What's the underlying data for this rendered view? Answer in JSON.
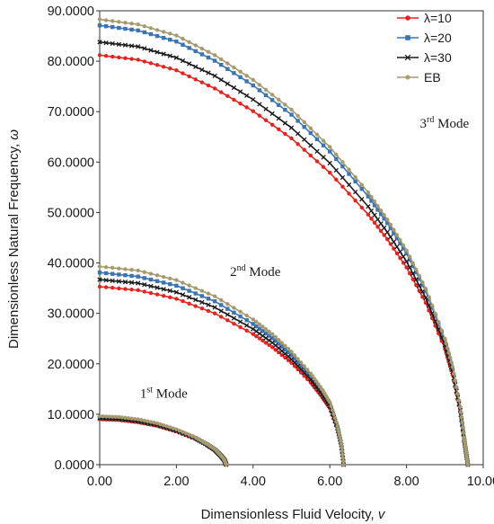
{
  "chart_data": {
    "type": "line",
    "xlabel": "Dimensionless Fluid Velocity, ",
    "xlabel_var": "v",
    "ylabel": "Dimensionless Natural Frequency, ",
    "ylabel_var": "ω",
    "xlim": [
      0,
      10
    ],
    "ylim": [
      0,
      90
    ],
    "xticks": [
      "0.00",
      "2.00",
      "4.00",
      "6.00",
      "8.00",
      "10.00"
    ],
    "yticks": [
      "0.0000",
      "10.0000",
      "20.0000",
      "30.0000",
      "40.0000",
      "50.0000",
      "60.0000",
      "70.0000",
      "80.0000",
      "90.0000"
    ],
    "grid": false,
    "legend_position": "top-right",
    "colors": {
      "lambda10": "#e8231f",
      "lambda20": "#3b74b3",
      "lambda30": "#1c1c1c",
      "eb": "#a59a6e"
    },
    "series": [
      {
        "name": "λ=10",
        "markers": "circle",
        "color": "#e8231f",
        "modes": [
          {
            "x": [
              0,
              0.5,
              1.0,
              1.5,
              2.0,
              2.5,
              2.8,
              3.0,
              3.15,
              3.25,
              3.3
            ],
            "y": [
              9.0,
              8.85,
              8.4,
              7.7,
              6.6,
              5.1,
              3.9,
              2.9,
              1.8,
              0.9,
              0
            ]
          },
          {
            "x": [
              0,
              1.0,
              2.0,
              3.0,
              4.0,
              4.5,
              5.0,
              5.5,
              5.8,
              6.0,
              6.2,
              6.3,
              6.36
            ],
            "y": [
              35.3,
              34.6,
              32.9,
              30.0,
              25.9,
              23.3,
              20.2,
              16.3,
              13.4,
              11.2,
              7.0,
              3.8,
              0
            ]
          },
          {
            "x": [
              0,
              1.0,
              2.0,
              3.0,
              4.0,
              5.0,
              6.0,
              7.0,
              7.5,
              8.0,
              8.5,
              9.0,
              9.2,
              9.4,
              9.5,
              9.55,
              9.6
            ],
            "y": [
              81.2,
              80.3,
              78.2,
              74.6,
              70.1,
              64.7,
              57.9,
              49.6,
              44.7,
              39.1,
              32.1,
              23.0,
              17.8,
              10.5,
              5.0,
              2.5,
              0
            ]
          }
        ]
      },
      {
        "name": "λ=20",
        "markers": "square",
        "color": "#3b74b3",
        "modes": [
          {
            "x": [
              0,
              0.5,
              1.0,
              1.5,
              2.0,
              2.5,
              2.8,
              3.0,
              3.15,
              3.25,
              3.3
            ],
            "y": [
              9.3,
              9.15,
              8.7,
              7.95,
              6.8,
              5.25,
              4.0,
              3.0,
              1.85,
              0.95,
              0
            ]
          },
          {
            "x": [
              0,
              1.0,
              2.0,
              3.0,
              4.0,
              4.5,
              5.0,
              5.5,
              5.8,
              6.0,
              6.2,
              6.3,
              6.36
            ],
            "y": [
              38.1,
              37.3,
              35.5,
              32.4,
              27.9,
              25.1,
              21.7,
              17.5,
              14.4,
              12.0,
              7.5,
              4.0,
              0
            ]
          },
          {
            "x": [
              0,
              1.0,
              2.0,
              3.0,
              4.0,
              5.0,
              6.0,
              7.0,
              7.5,
              8.0,
              8.5,
              9.0,
              9.2,
              9.4,
              9.5,
              9.55,
              9.6
            ],
            "y": [
              87.1,
              86.1,
              83.9,
              80.1,
              75.2,
              69.4,
              62.1,
              53.2,
              47.9,
              41.9,
              34.4,
              24.6,
              19.1,
              11.2,
              5.3,
              2.6,
              0
            ]
          }
        ]
      },
      {
        "name": "λ=30",
        "markers": "x",
        "color": "#1c1c1c",
        "modes": [
          {
            "x": [
              0,
              0.5,
              1.0,
              1.5,
              2.0,
              2.5,
              2.8,
              3.0,
              3.15,
              3.25,
              3.3
            ],
            "y": [
              9.2,
              9.05,
              8.6,
              7.85,
              6.7,
              5.2,
              3.95,
              2.95,
              1.82,
              0.92,
              0
            ]
          },
          {
            "x": [
              0,
              1.0,
              2.0,
              3.0,
              4.0,
              4.5,
              5.0,
              5.5,
              5.8,
              6.0,
              6.2,
              6.3,
              6.36
            ],
            "y": [
              36.7,
              36.0,
              34.2,
              31.2,
              26.9,
              24.2,
              20.9,
              16.9,
              13.9,
              11.6,
              7.2,
              3.9,
              0
            ]
          },
          {
            "x": [
              0,
              1.0,
              2.0,
              3.0,
              4.0,
              5.0,
              6.0,
              7.0,
              7.5,
              8.0,
              8.5,
              9.0,
              9.2,
              9.4,
              9.5,
              9.55,
              9.6
            ],
            "y": [
              83.8,
              82.9,
              80.7,
              77.1,
              72.4,
              66.8,
              59.8,
              51.2,
              46.1,
              40.3,
              33.1,
              23.7,
              18.4,
              10.8,
              5.1,
              2.5,
              0
            ]
          }
        ]
      },
      {
        "name": "EB",
        "markers": "star",
        "color": "#a59a6e",
        "modes": [
          {
            "x": [
              0,
              0.5,
              1.0,
              1.5,
              2.0,
              2.5,
              2.8,
              3.0,
              3.15,
              3.25,
              3.3
            ],
            "y": [
              9.6,
              9.45,
              9.0,
              8.2,
              7.0,
              5.4,
              4.1,
              3.1,
              1.9,
              0.98,
              0
            ]
          },
          {
            "x": [
              0,
              1.0,
              2.0,
              3.0,
              4.0,
              4.5,
              5.0,
              5.5,
              5.8,
              6.0,
              6.2,
              6.3,
              6.36
            ],
            "y": [
              39.3,
              38.5,
              36.6,
              33.4,
              28.8,
              25.9,
              22.4,
              18.1,
              14.9,
              12.4,
              7.7,
              4.1,
              0
            ]
          },
          {
            "x": [
              0,
              1.0,
              2.0,
              3.0,
              4.0,
              5.0,
              6.0,
              7.0,
              7.5,
              8.0,
              8.5,
              9.0,
              9.2,
              9.4,
              9.5,
              9.55,
              9.6
            ],
            "y": [
              88.3,
              87.3,
              85.1,
              81.2,
              76.3,
              70.4,
              63.0,
              54.0,
              48.6,
              42.5,
              34.9,
              25.0,
              19.4,
              11.4,
              5.4,
              2.7,
              0
            ]
          }
        ]
      }
    ],
    "annotations": [
      {
        "id": "mode1",
        "number": "1",
        "sup": "st",
        "text": "Mode",
        "at": [
          1.05,
          13.3
        ]
      },
      {
        "id": "mode2",
        "number": "2",
        "sup": "nd",
        "text": "Mode",
        "at": [
          3.4,
          37.4
        ]
      },
      {
        "id": "mode3",
        "number": "3",
        "sup": "rd",
        "text": "Mode",
        "at": [
          8.35,
          66.8
        ]
      }
    ]
  }
}
